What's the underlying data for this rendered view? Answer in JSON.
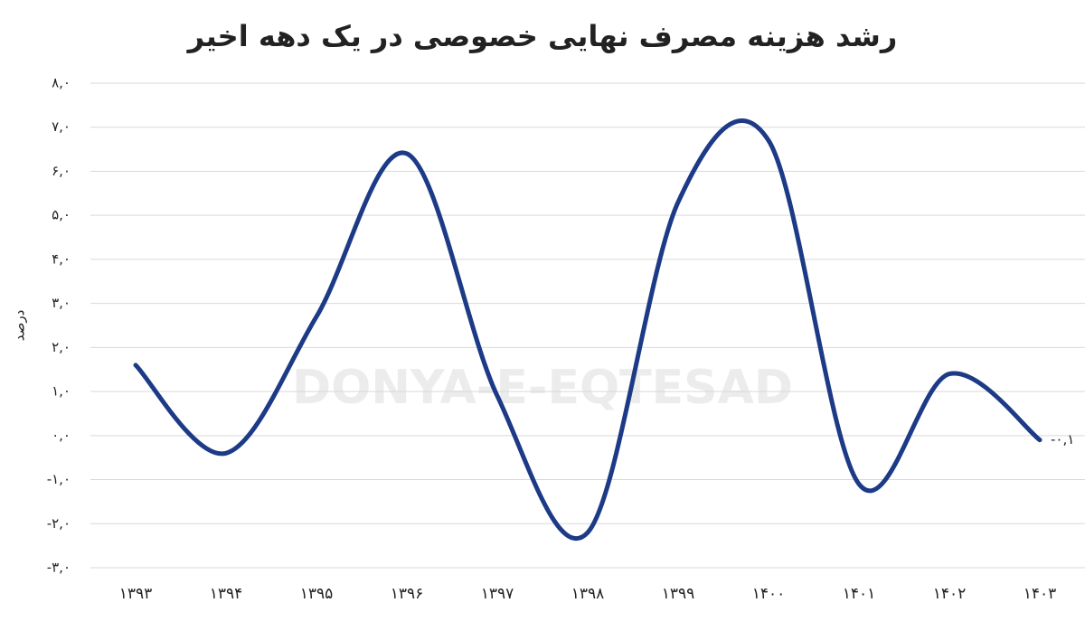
{
  "chart_data": {
    "type": "line",
    "title": "رشد هزینه مصرف نهایی خصوصی در یک دهه اخیر",
    "y_label": "درصد",
    "watermark": "DONYA-E-EQTESAD",
    "categories": [
      "۱۳۹۳",
      "۱۳۹۴",
      "۱۳۹۵",
      "۱۳۹۶",
      "۱۳۹۷",
      "۱۳۹۸",
      "۱۳۹۹",
      "۱۴۰۰",
      "۱۴۰۱",
      "۱۴۰۲",
      "۱۴۰۳"
    ],
    "series": [
      {
        "name": "رشد",
        "color": "#1c3a86",
        "values": [
          1.6,
          -0.4,
          2.7,
          6.4,
          0.9,
          -2.2,
          5.3,
          6.7,
          -1.1,
          1.4,
          -0.1
        ],
        "value_labels": [
          null,
          null,
          null,
          null,
          null,
          null,
          null,
          null,
          null,
          null,
          "-۰,۱"
        ]
      }
    ],
    "ylim": [
      -3,
      8
    ],
    "yticks": [
      {
        "value": -3,
        "label": "-۳,۰"
      },
      {
        "value": -2,
        "label": "-۲,۰"
      },
      {
        "value": -1,
        "label": "-۱,۰"
      },
      {
        "value": 0,
        "label": "۰,۰"
      },
      {
        "value": 1,
        "label": "۱,۰"
      },
      {
        "value": 2,
        "label": "۲,۰"
      },
      {
        "value": 3,
        "label": "۳,۰"
      },
      {
        "value": 4,
        "label": "۴,۰"
      },
      {
        "value": 5,
        "label": "۵,۰"
      },
      {
        "value": 6,
        "label": "۶,۰"
      },
      {
        "value": 7,
        "label": "۷,۰"
      },
      {
        "value": 8,
        "label": "۸,۰"
      }
    ],
    "grid": true,
    "smooth": true
  }
}
